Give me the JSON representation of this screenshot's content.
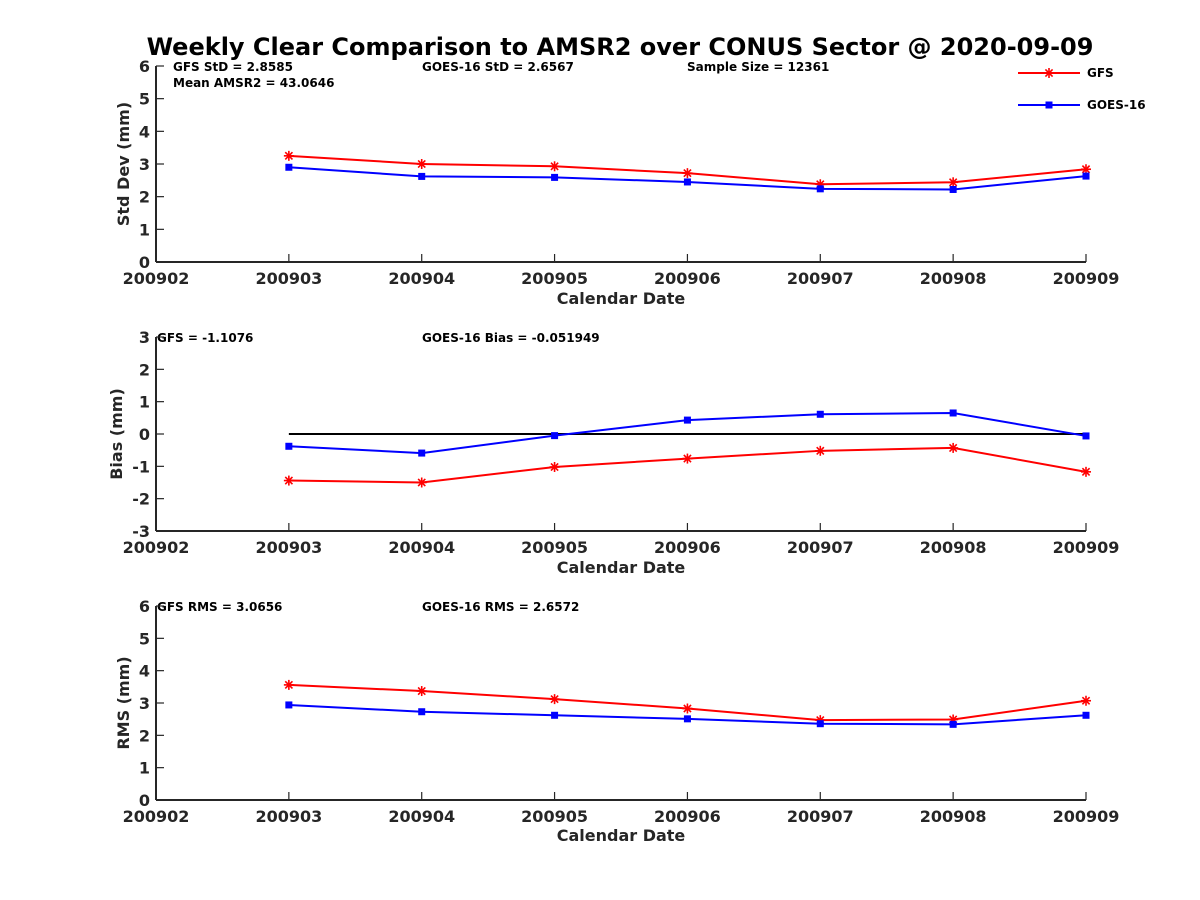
{
  "title": "Weekly Clear Comparison to AMSR2 over CONUS Sector @ 2020-09-09",
  "legend": {
    "placement": "top-right",
    "entries": [
      {
        "name": "GFS",
        "color": "#ff0000",
        "marker": "asterisk"
      },
      {
        "name": "GOES-16",
        "color": "#0000ff",
        "marker": "square"
      }
    ]
  },
  "chart_data": [
    {
      "type": "line",
      "xlabel": "Calendar Date",
      "ylabel": "Std Dev (mm)",
      "x_tick_labels": [
        "200902",
        "200903",
        "200904",
        "200905",
        "200906",
        "200907",
        "200908",
        "200909"
      ],
      "y_ticks": [
        0,
        1,
        2,
        3,
        4,
        5,
        6
      ],
      "ylim": [
        0,
        6
      ],
      "grid": false,
      "zero_line": false,
      "annotations": [
        "GFS StD = 2.8585",
        "Mean AMSR2 = 43.0646",
        "GOES-16 StD = 2.6567",
        "Sample Size = 12361"
      ],
      "x": [
        "200903",
        "200904",
        "200905",
        "200906",
        "200907",
        "200908",
        "200909"
      ],
      "series": [
        {
          "name": "GFS",
          "color": "#ff0000",
          "marker": "asterisk",
          "values": [
            3.25,
            3.0,
            2.93,
            2.72,
            2.38,
            2.44,
            2.84
          ]
        },
        {
          "name": "GOES-16",
          "color": "#0000ff",
          "marker": "square",
          "values": [
            2.9,
            2.62,
            2.59,
            2.45,
            2.24,
            2.22,
            2.63
          ]
        }
      ]
    },
    {
      "type": "line",
      "xlabel": "Calendar Date",
      "ylabel": "Bias (mm)",
      "x_tick_labels": [
        "200902",
        "200903",
        "200904",
        "200905",
        "200906",
        "200907",
        "200908",
        "200909"
      ],
      "y_ticks": [
        -3,
        -2,
        -1,
        0,
        1,
        2,
        3
      ],
      "ylim": [
        -3,
        3
      ],
      "grid": false,
      "zero_line": true,
      "annotations": [
        "GFS = -1.1076",
        "GOES-16 Bias  = -0.051949"
      ],
      "x": [
        "200903",
        "200904",
        "200905",
        "200906",
        "200907",
        "200908",
        "200909"
      ],
      "series": [
        {
          "name": "GFS",
          "color": "#ff0000",
          "marker": "asterisk",
          "values": [
            -1.44,
            -1.5,
            -1.02,
            -0.76,
            -0.52,
            -0.43,
            -1.17
          ]
        },
        {
          "name": "GOES-16",
          "color": "#0000ff",
          "marker": "square",
          "values": [
            -0.38,
            -0.59,
            -0.05,
            0.43,
            0.61,
            0.65,
            -0.06
          ]
        }
      ]
    },
    {
      "type": "line",
      "xlabel": "Calendar Date",
      "ylabel": "RMS (mm)",
      "x_tick_labels": [
        "200902",
        "200903",
        "200904",
        "200905",
        "200906",
        "200907",
        "200908",
        "200909"
      ],
      "y_ticks": [
        0,
        1,
        2,
        3,
        4,
        5,
        6
      ],
      "ylim": [
        0,
        6
      ],
      "grid": false,
      "zero_line": false,
      "annotations": [
        "GFS RMS = 3.0656",
        "GOES-16 RMS = 2.6572"
      ],
      "x": [
        "200903",
        "200904",
        "200905",
        "200906",
        "200907",
        "200908",
        "200909"
      ],
      "series": [
        {
          "name": "GFS",
          "color": "#ff0000",
          "marker": "asterisk",
          "values": [
            3.56,
            3.37,
            3.12,
            2.83,
            2.47,
            2.49,
            3.07
          ]
        },
        {
          "name": "GOES-16",
          "color": "#0000ff",
          "marker": "square",
          "values": [
            2.94,
            2.73,
            2.62,
            2.51,
            2.36,
            2.34,
            2.62
          ]
        }
      ]
    }
  ]
}
